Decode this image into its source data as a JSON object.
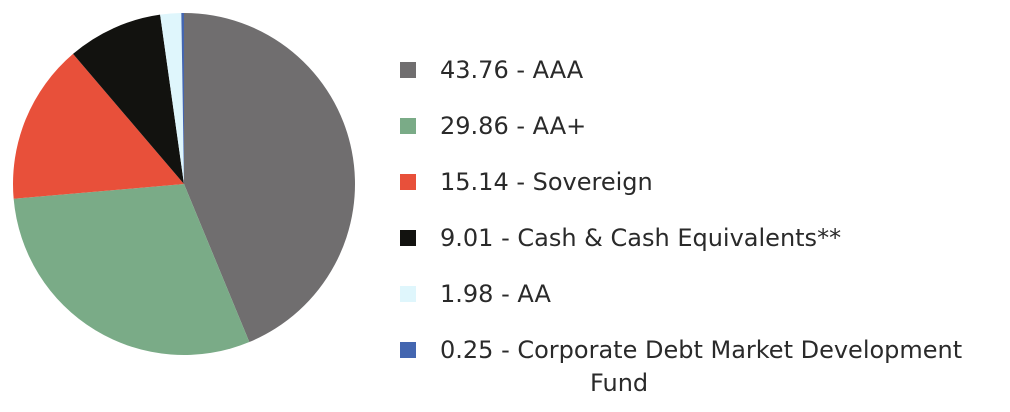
{
  "chart_data": {
    "type": "pie",
    "categories": [
      "43.76 - AAA",
      "29.86 - AA+",
      "15.14 - Sovereign",
      "9.01 - Cash & Cash Equivalents**",
      "1.98 - AA",
      "0.25 - Corporate Debt Market Development Fund"
    ],
    "values": [
      43.76,
      29.86,
      15.14,
      9.01,
      1.98,
      0.25
    ],
    "colors": [
      "#706e6f",
      "#7aab87",
      "#e8503a",
      "#12120f",
      "#dff6fc",
      "#4466b0"
    ],
    "legend": "right"
  }
}
